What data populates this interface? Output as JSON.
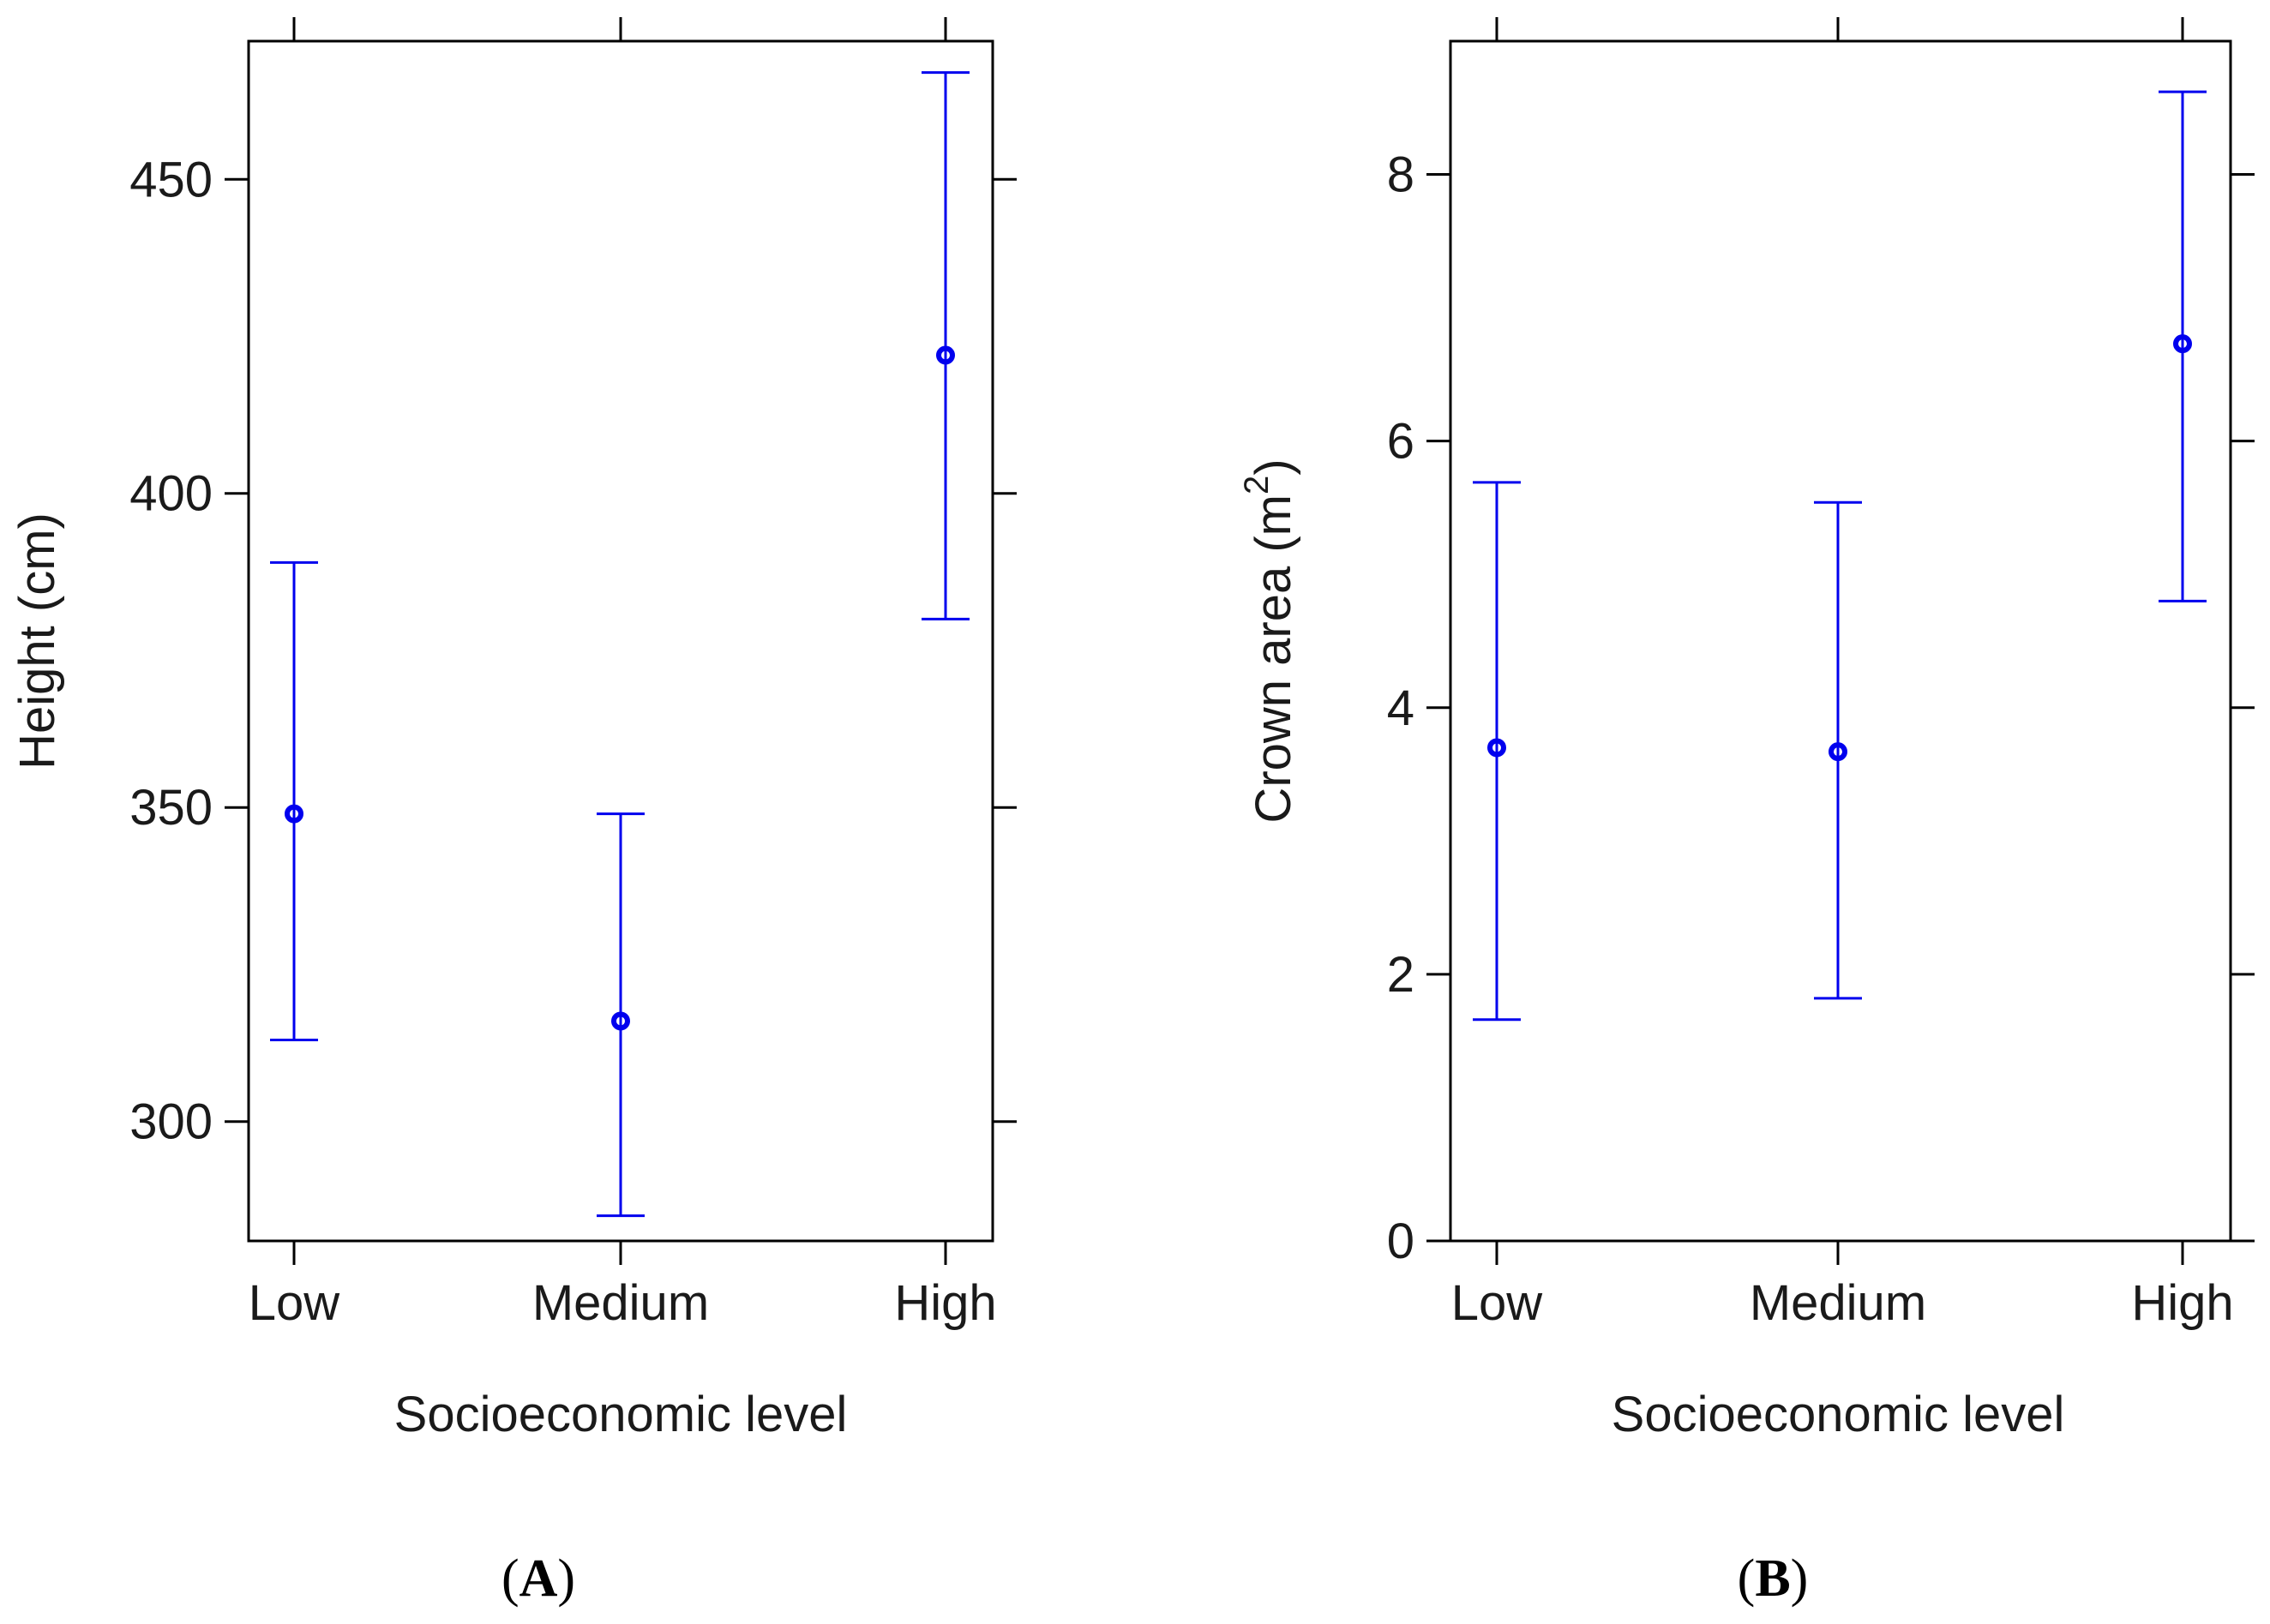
{
  "colors": {
    "series": "#0000ee",
    "axes": "#000000"
  },
  "chart_data": [
    {
      "type": "scatter",
      "panel_caption": "(A)",
      "caption_letter": "A",
      "title": "",
      "xlabel": "Socioeconomic level",
      "ylabel": "Height (cm)",
      "categories": [
        "Low",
        "Medium",
        "High"
      ],
      "ylim": [
        281,
        472
      ],
      "yticks": [
        300,
        350,
        400,
        450
      ],
      "series": [
        {
          "name": "Height",
          "values": [
            349,
            316,
            422
          ],
          "lower": [
            313,
            285,
            380
          ],
          "upper": [
            389,
            349,
            467
          ]
        }
      ]
    },
    {
      "type": "scatter",
      "panel_caption": "(B)",
      "caption_letter": "B",
      "title": "",
      "xlabel": "Socioeconomic level",
      "ylabel": "Crown area (m",
      "ylabel_superscript": "2",
      "ylabel_suffix": ")",
      "categories": [
        "Low",
        "Medium",
        "High"
      ],
      "ylim": [
        0,
        9.0
      ],
      "yticks": [
        0,
        2,
        4,
        6,
        8
      ],
      "series": [
        {
          "name": "Crown area",
          "values": [
            3.7,
            3.67,
            6.73
          ],
          "lower": [
            1.66,
            1.82,
            4.8
          ],
          "upper": [
            5.69,
            5.54,
            8.62
          ]
        }
      ]
    }
  ]
}
